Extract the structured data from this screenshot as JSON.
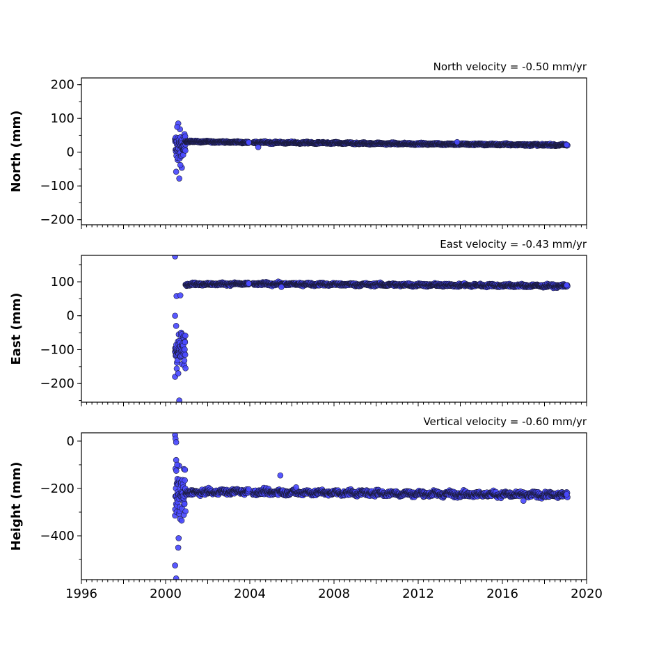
{
  "chart_data": [
    {
      "type": "scatter",
      "title": "North velocity = -0.50 mm/yr",
      "ylabel": "North (mm)",
      "xlim": [
        1996,
        2020
      ],
      "ylim": [
        -215,
        220
      ],
      "yticks": [
        -200,
        -100,
        0,
        100,
        200
      ],
      "x_minor_step": 0.25,
      "y_minor_step": 50,
      "marker_color": "#4a4aff",
      "segments": [
        {
          "x0": 2000.45,
          "x1": 2000.95,
          "center": 15,
          "spread": 32,
          "step": 0.008
        },
        {
          "x0": 2000.95,
          "x1": 2003.95,
          "start": 32,
          "end": 29,
          "spread": 1.5,
          "step": 0.012
        },
        {
          "x0": 2004.15,
          "x1": 2019.1,
          "start": 29,
          "end": 21,
          "spread": 1.8,
          "step": 0.012
        }
      ],
      "extra_points": [
        {
          "x": 2000.6,
          "y": 85
        },
        {
          "x": 2000.55,
          "y": 75
        },
        {
          "x": 2000.65,
          "y": -78
        },
        {
          "x": 2000.5,
          "y": -58
        },
        {
          "x": 2000.7,
          "y": -38
        },
        {
          "x": 2004.4,
          "y": 15
        },
        {
          "x": 2003.95,
          "y": 29
        },
        {
          "x": 2013.85,
          "y": 30
        },
        {
          "x": 2019.05,
          "y": 22
        }
      ]
    },
    {
      "type": "scatter",
      "title": "East velocity = -0.43 mm/yr",
      "ylabel": "East (mm)",
      "xlim": [
        1996,
        2020
      ],
      "ylim": [
        -255,
        178
      ],
      "yticks": [
        -200,
        -100,
        0,
        100
      ],
      "x_minor_step": 0.25,
      "y_minor_step": 50,
      "marker_color": "#4a4aff",
      "segments": [
        {
          "x0": 2000.45,
          "x1": 2000.95,
          "center": -100,
          "spread": 35,
          "step": 0.008
        },
        {
          "x0": 2000.95,
          "x1": 2003.95,
          "start": 93,
          "end": 94,
          "spread": 2.5,
          "step": 0.012
        },
        {
          "x0": 2004.15,
          "x1": 2019.1,
          "start": 94,
          "end": 88,
          "spread": 2.8,
          "step": 0.012
        }
      ],
      "extra_points": [
        {
          "x": 2000.45,
          "y": 175
        },
        {
          "x": 2000.52,
          "y": 58
        },
        {
          "x": 2000.7,
          "y": 60
        },
        {
          "x": 2000.45,
          "y": 0
        },
        {
          "x": 2000.5,
          "y": -30
        },
        {
          "x": 2000.65,
          "y": -250
        },
        {
          "x": 2000.45,
          "y": -180
        },
        {
          "x": 2000.6,
          "y": -170
        },
        {
          "x": 2003.95,
          "y": 95
        },
        {
          "x": 2005.5,
          "y": 85
        },
        {
          "x": 2019.05,
          "y": 90
        }
      ]
    },
    {
      "type": "scatter",
      "title": "Vertical velocity = -0.60 mm/yr",
      "ylabel": "Height (mm)",
      "xlim": [
        1996,
        2020
      ],
      "ylim": [
        -585,
        35
      ],
      "yticks": [
        -400,
        -200,
        0
      ],
      "x_minor_step": 0.25,
      "y_minor_step": 100,
      "marker_color": "#4a4aff",
      "segments": [
        {
          "x0": 2000.45,
          "x1": 2000.95,
          "center": -230,
          "spread": 70,
          "step": 0.008
        },
        {
          "x0": 2000.95,
          "x1": 2003.95,
          "start": -218,
          "end": -212,
          "spread": 7,
          "step": 0.012
        },
        {
          "x0": 2004.15,
          "x1": 2019.1,
          "start": -215,
          "end": -228,
          "spread": 7.5,
          "step": 0.012
        }
      ],
      "extra_points": [
        {
          "x": 2000.45,
          "y": 25
        },
        {
          "x": 2000.47,
          "y": 10
        },
        {
          "x": 2000.5,
          "y": -5
        },
        {
          "x": 2000.5,
          "y": -80
        },
        {
          "x": 2000.55,
          "y": -100
        },
        {
          "x": 2000.6,
          "y": -450
        },
        {
          "x": 2000.45,
          "y": -525
        },
        {
          "x": 2000.5,
          "y": -580
        },
        {
          "x": 2000.62,
          "y": -410
        },
        {
          "x": 2005.45,
          "y": -145
        },
        {
          "x": 2006.2,
          "y": -195
        },
        {
          "x": 2017.0,
          "y": -252
        },
        {
          "x": 2019.05,
          "y": -225
        }
      ]
    }
  ],
  "xaxis": {
    "tick_labels": [
      "1996",
      "2000",
      "2004",
      "2008",
      "2012",
      "2016",
      "2020"
    ],
    "tick_values": [
      1996,
      2000,
      2004,
      2008,
      2012,
      2016,
      2020
    ]
  }
}
